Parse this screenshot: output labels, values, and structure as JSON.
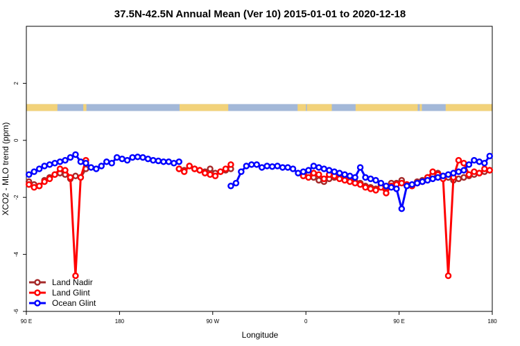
{
  "chart_data": {
    "type": "line",
    "title": "37.5N-42.5N Annual Mean (Ver 10)   2015-01-01 to 2020-12-18",
    "xlabel": "Longitude",
    "ylabel": "XCO2 - MLO trend (ppm)",
    "x_unwrapped_range": [
      90,
      540
    ],
    "xlim_labels": [
      "90 E",
      "180",
      "90 W",
      "0",
      "90 E",
      "180"
    ],
    "x_tick_positions": [
      90,
      180,
      270,
      360,
      450,
      540
    ],
    "ylim": [
      -6,
      4
    ],
    "y_ticks": [
      -6,
      -4,
      -2,
      0,
      2
    ],
    "y_tick_labels": [
      "-6",
      "-4",
      "-2",
      "0",
      "2"
    ],
    "grid": false,
    "legend_position": "bottom-left",
    "land_ocean_band": {
      "y_center": 1.15,
      "land_color": "#F2D27A",
      "ocean_color": "#A3B8D8",
      "land_segments": [
        [
          90,
          120
        ],
        [
          145,
          148
        ],
        [
          238,
          285
        ],
        [
          352,
          360
        ],
        [
          361,
          385
        ],
        [
          408,
          468
        ],
        [
          470,
          472
        ],
        [
          495,
          540
        ]
      ]
    },
    "series": [
      {
        "name": "Land Nadir",
        "color": "#A52A2A",
        "x": [
          92.5,
          97.5,
          102.5,
          107.5,
          112.5,
          117.5,
          122.5,
          127.5,
          132.5,
          137.5,
          142.5,
          147.5,
          237.5,
          242.5,
          247.5,
          252.5,
          257.5,
          262.5,
          267.5,
          272.5,
          277.5,
          282.5,
          287.5,
          357.5,
          362.5,
          367.5,
          372.5,
          377.5,
          382.5,
          387.5,
          392.5,
          397.5,
          402.5,
          407.5,
          412.5,
          417.5,
          422.5,
          427.5,
          432.5,
          437.5,
          442.5,
          447.5,
          452.5,
          457.5,
          462.5,
          467.5,
          472.5,
          477.5,
          482.5,
          487.5,
          492.5,
          497.5,
          502.5,
          507.5,
          512.5,
          517.5,
          522.5,
          527.5,
          532.5,
          537.5
        ],
        "values": [
          -1.45,
          -1.55,
          -1.6,
          -1.4,
          -1.3,
          -1.2,
          -1.15,
          -1.2,
          -1.35,
          -1.25,
          -1.3,
          -1.0,
          -1.0,
          -1.05,
          -0.9,
          -1.0,
          -1.05,
          -1.1,
          -1.0,
          -1.15,
          -1.1,
          -1.05,
          -1.0,
          -1.25,
          -1.2,
          -1.3,
          -1.4,
          -1.45,
          -1.35,
          -1.3,
          -1.3,
          -1.35,
          -1.4,
          -1.45,
          -1.5,
          -1.6,
          -1.65,
          -1.7,
          -1.55,
          -1.65,
          -1.5,
          -1.5,
          -1.4,
          -1.55,
          -1.6,
          -1.45,
          -1.4,
          -1.3,
          -1.2,
          -1.15,
          -1.25,
          -1.3,
          -1.4,
          -1.35,
          -1.3,
          -1.25,
          -1.2,
          -1.15,
          -1.1,
          -1.05
        ]
      },
      {
        "name": "Land Glint",
        "color": "#FF0000",
        "x": [
          92.5,
          97.5,
          102.5,
          107.5,
          112.5,
          117.5,
          122.5,
          127.5,
          132.5,
          137.5,
          142.5,
          147.5,
          237.5,
          242.5,
          247.5,
          252.5,
          257.5,
          262.5,
          267.5,
          272.5,
          277.5,
          282.5,
          287.5,
          357.5,
          362.5,
          367.5,
          372.5,
          377.5,
          382.5,
          387.5,
          392.5,
          397.5,
          402.5,
          407.5,
          412.5,
          417.5,
          422.5,
          427.5,
          432.5,
          437.5,
          442.5,
          447.5,
          452.5,
          457.5,
          462.5,
          467.5,
          472.5,
          477.5,
          482.5,
          487.5,
          492.5,
          497.5,
          502.5,
          507.5,
          512.5,
          517.5,
          522.5,
          527.5,
          532.5,
          537.5
        ],
        "values": [
          -1.55,
          -1.65,
          -1.6,
          -1.45,
          -1.35,
          -1.2,
          -1.0,
          -1.05,
          -1.3,
          -4.75,
          -1.3,
          -0.7,
          -1.0,
          -1.1,
          -0.9,
          -1.0,
          -1.05,
          -1.15,
          -1.2,
          -1.25,
          -1.1,
          -1.0,
          -0.85,
          -1.25,
          -1.3,
          -1.15,
          -1.2,
          -1.35,
          -1.2,
          -1.25,
          -1.35,
          -1.4,
          -1.45,
          -1.5,
          -1.55,
          -1.65,
          -1.7,
          -1.75,
          -1.65,
          -1.85,
          -1.6,
          -1.55,
          -1.5,
          -1.55,
          -1.6,
          -1.5,
          -1.45,
          -1.3,
          -1.1,
          -1.2,
          -1.35,
          -4.75,
          -1.3,
          -0.7,
          -0.8,
          -1.2,
          -1.1,
          -1.15,
          -1.0,
          -1.05
        ]
      },
      {
        "name": "Ocean Glint",
        "color": "#0000FF",
        "x": [
          92.5,
          97.5,
          102.5,
          107.5,
          112.5,
          117.5,
          122.5,
          127.5,
          132.5,
          137.5,
          142.5,
          147.5,
          152.5,
          157.5,
          162.5,
          167.5,
          172.5,
          177.5,
          182.5,
          187.5,
          192.5,
          197.5,
          202.5,
          207.5,
          212.5,
          217.5,
          222.5,
          227.5,
          232.5,
          237.5,
          287.5,
          292.5,
          297.5,
          302.5,
          307.5,
          312.5,
          317.5,
          322.5,
          327.5,
          332.5,
          337.5,
          342.5,
          347.5,
          352.5,
          357.5,
          362.5,
          367.5,
          372.5,
          377.5,
          382.5,
          387.5,
          392.5,
          397.5,
          402.5,
          407.5,
          412.5,
          417.5,
          422.5,
          427.5,
          432.5,
          437.5,
          442.5,
          447.5,
          452.5,
          457.5,
          462.5,
          467.5,
          472.5,
          477.5,
          482.5,
          487.5,
          492.5,
          497.5,
          502.5,
          507.5,
          512.5,
          517.5,
          522.5,
          527.5,
          532.5,
          537.5
        ],
        "values": [
          -1.2,
          -1.1,
          -1.0,
          -0.9,
          -0.85,
          -0.8,
          -0.75,
          -0.7,
          -0.6,
          -0.5,
          -0.75,
          -0.8,
          -0.95,
          -1.0,
          -0.9,
          -0.75,
          -0.8,
          -0.6,
          -0.65,
          -0.7,
          -0.6,
          -0.58,
          -0.6,
          -0.65,
          -0.7,
          -0.72,
          -0.75,
          -0.75,
          -0.8,
          -0.75,
          -1.6,
          -1.5,
          -1.1,
          -0.9,
          -0.85,
          -0.85,
          -0.95,
          -0.9,
          -0.92,
          -0.9,
          -0.95,
          -0.95,
          -1.0,
          -1.15,
          -1.1,
          -1.05,
          -0.9,
          -0.95,
          -1.0,
          -1.05,
          -1.1,
          -1.15,
          -1.2,
          -1.25,
          -1.3,
          -0.95,
          -1.3,
          -1.35,
          -1.4,
          -1.5,
          -1.6,
          -1.65,
          -1.7,
          -2.4,
          -1.6,
          -1.55,
          -1.5,
          -1.45,
          -1.4,
          -1.35,
          -1.3,
          -1.25,
          -1.2,
          -1.15,
          -1.1,
          -1.05,
          -0.85,
          -0.7,
          -0.75,
          -0.8,
          -0.55
        ]
      }
    ]
  }
}
